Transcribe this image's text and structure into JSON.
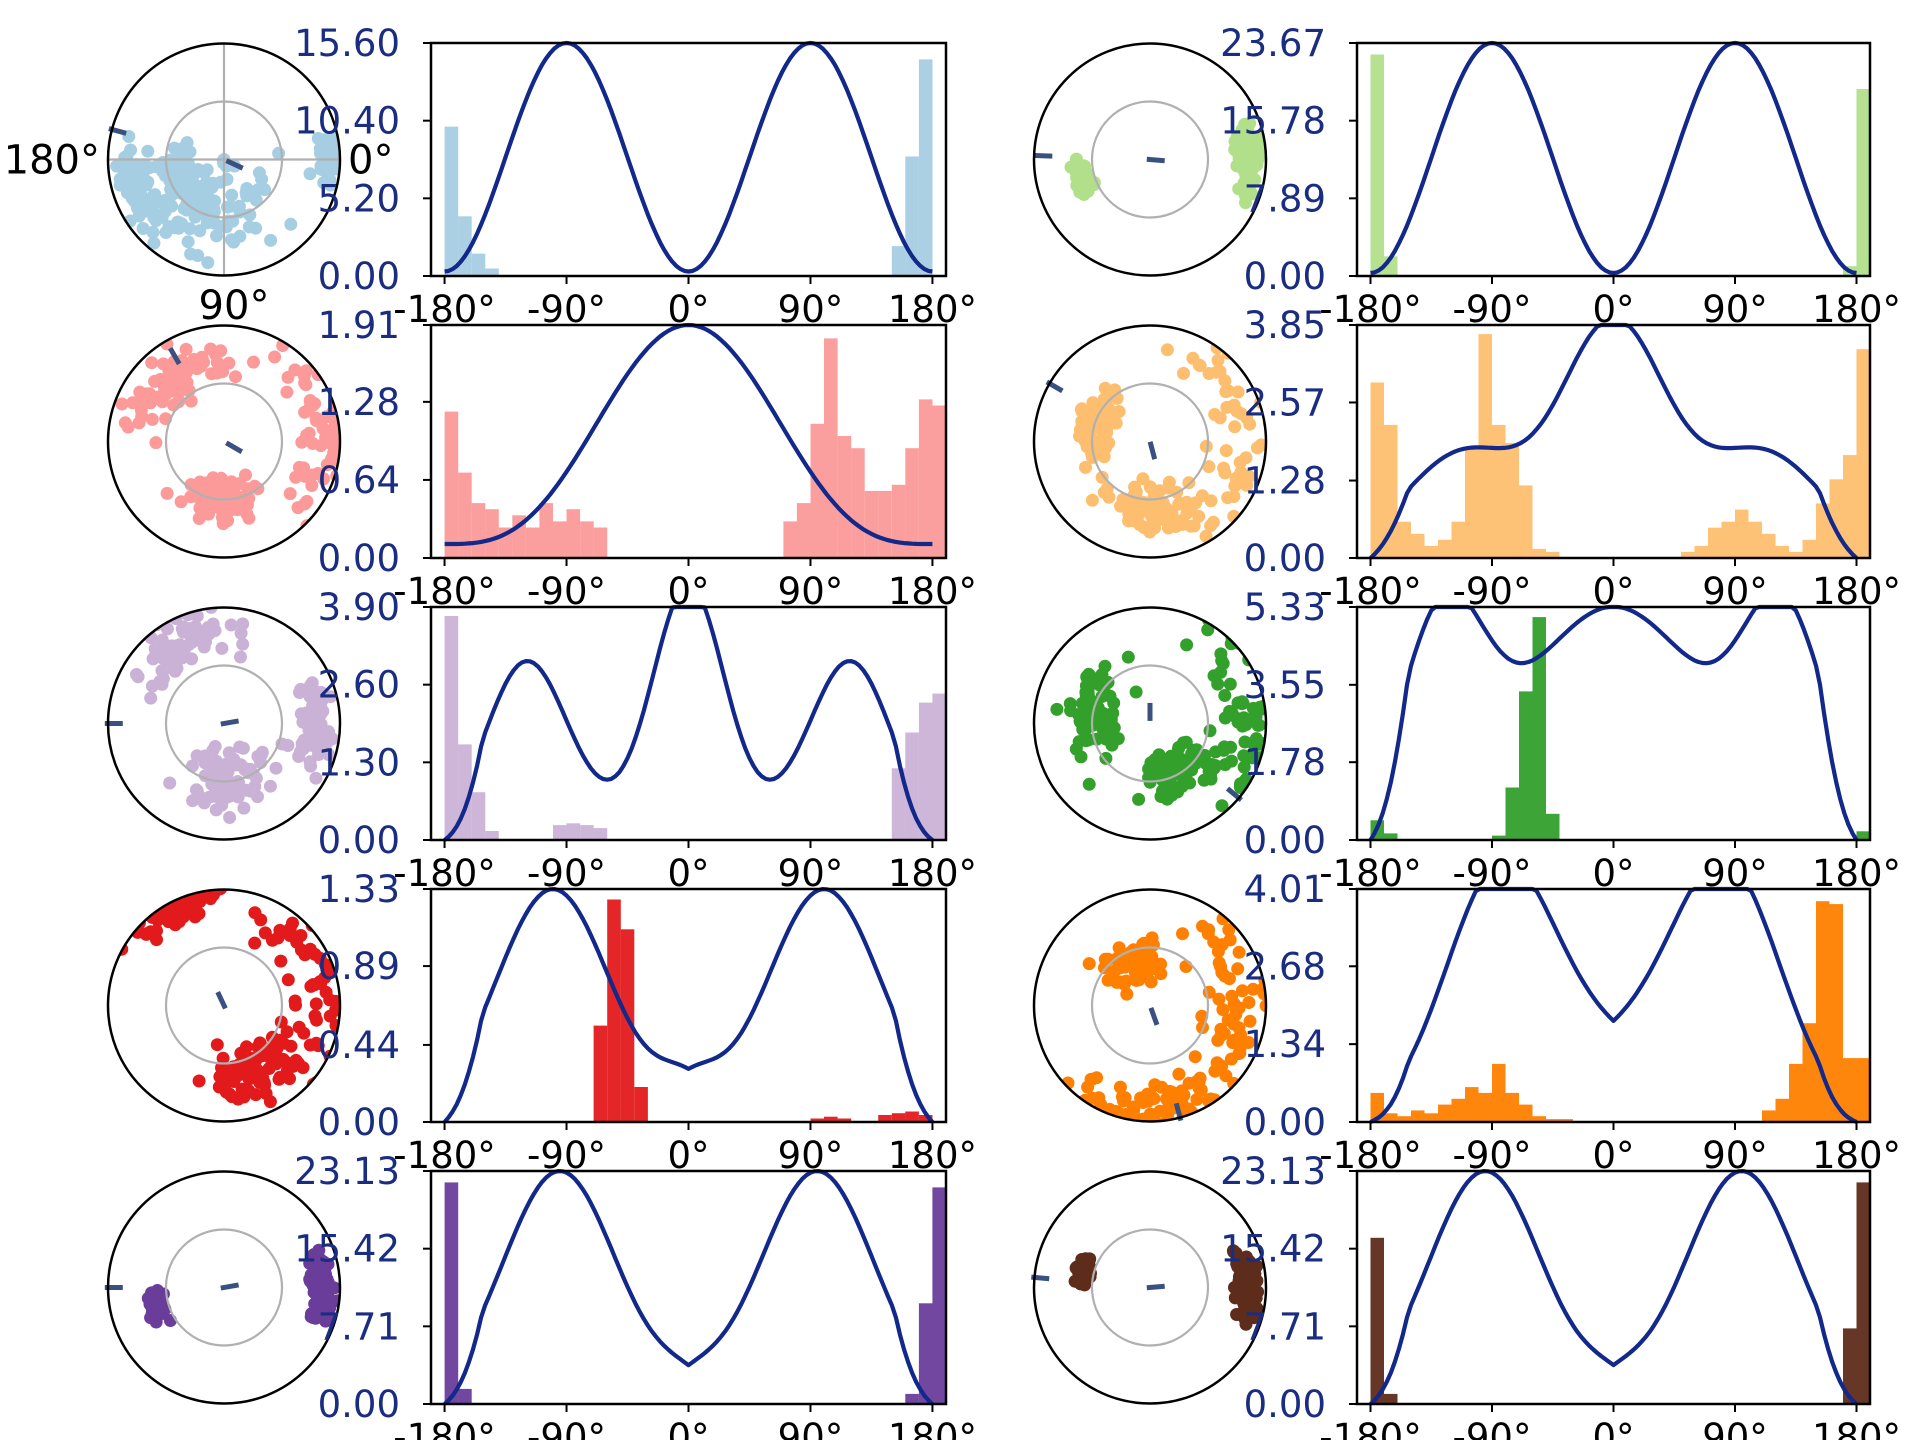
{
  "style": {
    "curve_color": "#12288a",
    "marker_color": "#3a5080",
    "frame_color": "#000000",
    "ring_color": "#b0b0b0",
    "tick_label_color": "#1a2d80"
  },
  "chart_data": [
    {
      "type": "bar",
      "name": "panel-r1-left",
      "color": "#a6cee3",
      "x_ticks": [
        "-180°",
        "-90°",
        "0°",
        "90°",
        "180°"
      ],
      "xlim": [
        -190,
        190
      ],
      "y_ticks": [
        "0.00",
        "5.20",
        "10.40",
        "15.60"
      ],
      "ylim": [
        0,
        15.6
      ],
      "hist_bins": [
        -180,
        -170,
        -160,
        -150,
        150,
        160,
        170
      ],
      "hist_values": [
        10.0,
        4.0,
        1.5,
        0.5,
        2.0,
        8.0,
        14.5
      ],
      "hist_width": 10,
      "curve_shape": "two-peak",
      "curve_params": {
        "peaks": [
          -90,
          90
        ],
        "max": 15.6,
        "min": 0.3
      },
      "polar": {
        "direction_labels": {
          "left": "180°",
          "right": "0°",
          "top": "",
          "bottom": ""
        },
        "show_crosshair": true,
        "markers": [
          [
            165,
            0.95
          ],
          [
            -25,
            0.1
          ]
        ],
        "points": [
          [
            1,
            0.9,
            0.3
          ],
          [
            -95,
            0.5,
            1.8
          ],
          [
            -160,
            0.8,
            0.7
          ],
          [
            -150,
            0.4,
            1.0
          ]
        ]
      }
    },
    {
      "type": "bar",
      "name": "panel-r1-right",
      "color": "#b2df8a",
      "x_ticks": [
        "-180°",
        "-90°",
        "0°",
        "90°",
        "180°"
      ],
      "xlim": [
        -190,
        190
      ],
      "y_ticks": [
        "0.00",
        "7.89",
        "15.78",
        "23.67"
      ],
      "ylim": [
        0,
        23.67
      ],
      "hist_bins": [
        -180,
        -170,
        170,
        180
      ],
      "hist_values": [
        22.5,
        2.0,
        1.0,
        19.0
      ],
      "hist_width": 10,
      "curve_shape": "two-peak",
      "curve_params": {
        "peaks": [
          -90,
          90
        ],
        "max": 23.67,
        "min": 0.3
      },
      "polar": {
        "direction_labels": {
          "left": "",
          "right": "",
          "top": "",
          "bottom": ""
        },
        "show_crosshair": false,
        "markers": [
          [
            178,
            0.92
          ],
          [
            -5,
            0.05
          ]
        ],
        "points": [
          [
            1,
            0.85,
            0.5
          ],
          [
            -165,
            0.6,
            0.3
          ]
        ]
      }
    },
    {
      "type": "bar",
      "name": "panel-r2-left",
      "color": "#fb9a99",
      "x_ticks": [
        "-180°",
        "-90°",
        "0°",
        "90°",
        "180°"
      ],
      "xlim": [
        -190,
        190
      ],
      "y_ticks": [
        "0.00",
        "0.64",
        "1.28",
        "1.91"
      ],
      "ylim": [
        0,
        1.91
      ],
      "hist_bins": [
        -180,
        -170,
        -160,
        -150,
        -140,
        -130,
        -120,
        -110,
        -100,
        -90,
        -80,
        -70,
        -60,
        70,
        80,
        90,
        100,
        110,
        120,
        130,
        140,
        150,
        160,
        170,
        180
      ],
      "hist_values": [
        1.2,
        0.7,
        0.45,
        0.4,
        0.25,
        0.35,
        0.25,
        0.45,
        0.3,
        0.4,
        0.3,
        0.25,
        0.0,
        0.3,
        0.45,
        1.1,
        1.8,
        1.0,
        0.9,
        0.55,
        0.55,
        0.6,
        0.9,
        1.3,
        1.25
      ],
      "hist_width": 10,
      "curve_shape": "bell",
      "curve_params": {
        "center": 0,
        "max": 1.91
      },
      "polar": {
        "direction_labels": {
          "left": "",
          "right": "",
          "top": "90°",
          "bottom": ""
        },
        "show_crosshair": false,
        "markers": [
          [
            120,
            0.85
          ],
          [
            -30,
            0.1
          ]
        ],
        "points": [
          [
            1,
            0.9,
            1.3
          ],
          [
            -90,
            0.5,
            0.9
          ],
          [
            130,
            0.7,
            1.0
          ]
        ]
      }
    },
    {
      "type": "bar",
      "name": "panel-r2-right",
      "color": "#fdbf6f",
      "x_ticks": [
        "-180°",
        "-90°",
        "0°",
        "90°",
        "180°"
      ],
      "xlim": [
        -190,
        190
      ],
      "y_ticks": [
        "0.00",
        "1.28",
        "2.57",
        "3.85"
      ],
      "ylim": [
        0,
        3.85
      ],
      "hist_bins": [
        -180,
        -170,
        -160,
        -150,
        -140,
        -130,
        -120,
        -110,
        -100,
        -90,
        -80,
        -70,
        -60,
        -50,
        50,
        60,
        70,
        80,
        90,
        100,
        110,
        120,
        130,
        140,
        150,
        160,
        170,
        180
      ],
      "hist_values": [
        2.9,
        2.2,
        0.6,
        0.4,
        0.2,
        0.3,
        0.6,
        1.8,
        3.7,
        2.2,
        1.9,
        1.2,
        0.15,
        0.1,
        0.1,
        0.2,
        0.5,
        0.6,
        0.8,
        0.6,
        0.4,
        0.2,
        0.1,
        0.3,
        0.9,
        1.3,
        1.7,
        3.45
      ],
      "hist_width": 10,
      "curve_shape": "three-peak",
      "curve_params": {
        "max": 3.85,
        "shoulder": 1.75
      },
      "polar": {
        "direction_labels": {
          "left": "",
          "right": "",
          "top": "",
          "bottom": ""
        },
        "show_crosshair": false,
        "markers": [
          [
            150,
            0.95
          ],
          [
            -75,
            0.08
          ]
        ],
        "points": [
          [
            1,
            0.9,
            1.5
          ],
          [
            -90,
            0.6,
            1.0
          ],
          [
            160,
            0.5,
            0.8
          ]
        ]
      }
    },
    {
      "type": "bar",
      "name": "panel-r3-left",
      "color": "#cab2d6",
      "x_ticks": [
        "-180°",
        "-90°",
        "0°",
        "90°",
        "180°"
      ],
      "xlim": [
        -190,
        190
      ],
      "y_ticks": [
        "0.00",
        "1.30",
        "2.60",
        "3.90"
      ],
      "ylim": [
        0,
        3.9
      ],
      "hist_bins": [
        -180,
        -170,
        -160,
        -150,
        -100,
        -90,
        -80,
        -70,
        150,
        160,
        170,
        180
      ],
      "hist_values": [
        3.75,
        1.6,
        0.8,
        0.15,
        0.25,
        0.28,
        0.25,
        0.2,
        1.2,
        1.8,
        2.3,
        2.45
      ],
      "hist_width": 10,
      "curve_shape": "three-peak-sharp",
      "curve_params": {
        "max": 3.9,
        "side": 2.8,
        "trough": 1.0
      },
      "polar": {
        "direction_labels": {
          "left": "",
          "right": "",
          "top": "",
          "bottom": ""
        },
        "show_crosshair": false,
        "markers": [
          [
            180,
            0.95
          ],
          [
            10,
            0.05
          ]
        ],
        "points": [
          [
            1,
            0.8,
            0.6
          ],
          [
            -80,
            0.5,
            1.2
          ],
          [
            120,
            0.8,
            0.9
          ]
        ]
      }
    },
    {
      "type": "bar",
      "name": "panel-r3-right",
      "color": "#33a02c",
      "x_ticks": [
        "-180°",
        "-90°",
        "0°",
        "90°",
        "180°"
      ],
      "xlim": [
        -190,
        190
      ],
      "y_ticks": [
        "0.00",
        "1.78",
        "3.55",
        "5.33"
      ],
      "ylim": [
        0,
        5.33
      ],
      "hist_bins": [
        -180,
        -170,
        -90,
        -80,
        -70,
        -60,
        -50,
        180
      ],
      "hist_values": [
        0.45,
        0.15,
        0.1,
        1.2,
        3.4,
        5.1,
        0.6,
        0.2
      ],
      "hist_width": 10,
      "curve_shape": "three-peak-low-center",
      "curve_params": {
        "max": 5.33,
        "center": 4.0,
        "trough": 2.7
      },
      "polar": {
        "direction_labels": {
          "left": "",
          "right": "",
          "top": "",
          "bottom": ""
        },
        "show_crosshair": false,
        "markers": [
          [
            -40,
            0.95
          ],
          [
            90,
            0.1
          ]
        ],
        "points": [
          [
            1,
            0.9,
            1.2
          ],
          [
            -60,
            0.5,
            1.0
          ],
          [
            170,
            0.5,
            1.2
          ]
        ]
      }
    },
    {
      "type": "bar",
      "name": "panel-r4-left",
      "color": "#e31a1c",
      "x_ticks": [
        "-180°",
        "-90°",
        "0°",
        "90°",
        "180°"
      ],
      "xlim": [
        -190,
        190
      ],
      "y_ticks": [
        "0.00",
        "0.44",
        "0.89",
        "1.33"
      ],
      "ylim": [
        0,
        1.33
      ],
      "hist_bins": [
        -70,
        -60,
        -50,
        -40,
        90,
        100,
        110,
        140,
        150,
        160,
        170
      ],
      "hist_values": [
        0.55,
        1.27,
        1.1,
        0.2,
        0.02,
        0.03,
        0.02,
        0.04,
        0.05,
        0.06,
        0.04
      ],
      "hist_width": 10,
      "curve_shape": "two-peak-valley",
      "curve_params": {
        "peaks": [
          -100,
          100
        ],
        "max": 1.33,
        "valley": 0.25
      },
      "polar": {
        "direction_labels": {
          "left": "",
          "right": "",
          "top": "",
          "bottom": ""
        },
        "show_crosshair": false,
        "markers": [
          [
            115,
            0.05
          ]
        ],
        "points": [
          [
            1,
            0.9,
            1.5
          ],
          [
            -60,
            0.6,
            1.0
          ],
          [
            120,
            0.95,
            0.6
          ]
        ]
      }
    },
    {
      "type": "bar",
      "name": "panel-r4-right",
      "color": "#ff7f00",
      "x_ticks": [
        "-180°",
        "-90°",
        "0°",
        "90°",
        "180°"
      ],
      "xlim": [
        -190,
        190
      ],
      "y_ticks": [
        "0.00",
        "1.34",
        "2.68",
        "4.01"
      ],
      "ylim": [
        0,
        4.01
      ],
      "hist_bins": [
        -180,
        -170,
        -160,
        -150,
        -140,
        -130,
        -120,
        -110,
        -100,
        -90,
        -80,
        -70,
        -60,
        -50,
        -40,
        110,
        120,
        130,
        140,
        150,
        160,
        170,
        180
      ],
      "hist_values": [
        0.5,
        0.15,
        0.1,
        0.2,
        0.15,
        0.3,
        0.4,
        0.6,
        0.5,
        1.0,
        0.5,
        0.3,
        0.1,
        0.05,
        0.05,
        0.2,
        0.4,
        1.0,
        1.7,
        3.8,
        3.75,
        1.1,
        1.1
      ],
      "hist_width": 10,
      "curve_shape": "two-peak-mid",
      "curve_params": {
        "peaks": [
          -85,
          85
        ],
        "max": 4.01,
        "valley": 2.2
      },
      "polar": {
        "direction_labels": {
          "left": "",
          "right": "",
          "top": "",
          "bottom": ""
        },
        "show_crosshair": false,
        "markers": [
          [
            -75,
            0.95
          ],
          [
            -70,
            0.1
          ]
        ],
        "points": [
          [
            1,
            0.8,
            1.5
          ],
          [
            110,
            0.4,
            0.9
          ],
          [
            -90,
            0.9,
            1.0
          ]
        ]
      }
    },
    {
      "type": "bar",
      "name": "panel-r5-left",
      "color": "#6a3d9a",
      "x_ticks": [
        "-180°",
        "-90°",
        "0°",
        "90°",
        "180°"
      ],
      "xlim": [
        -190,
        190
      ],
      "y_ticks": [
        "0.00",
        "7.71",
        "15.42",
        "23.13"
      ],
      "ylim": [
        0,
        23.13
      ],
      "hist_bins": [
        -180,
        -170,
        160,
        170,
        180
      ],
      "hist_values": [
        22.0,
        1.5,
        1.0,
        10.0,
        21.5
      ],
      "hist_width": 10,
      "curve_shape": "two-peak-valley",
      "curve_params": {
        "peaks": [
          -95,
          95
        ],
        "max": 23.13,
        "valley": 2.3
      },
      "polar": {
        "direction_labels": {
          "left": "",
          "right": "",
          "top": "",
          "bottom": ""
        },
        "show_crosshair": false,
        "markers": [
          [
            180,
            0.95
          ],
          [
            10,
            0.05
          ]
        ],
        "points": [
          [
            1,
            0.85,
            0.5
          ],
          [
            -165,
            0.6,
            0.3
          ]
        ]
      }
    },
    {
      "type": "bar",
      "name": "panel-r5-right",
      "color": "#5e2c1a",
      "x_ticks": [
        "-180°",
        "-90°",
        "0°",
        "90°",
        "180°"
      ],
      "xlim": [
        -190,
        190
      ],
      "y_ticks": [
        "0.00",
        "7.71",
        "15.42",
        "23.13"
      ],
      "ylim": [
        0,
        23.13
      ],
      "hist_bins": [
        -180,
        -170,
        170,
        180
      ],
      "hist_values": [
        16.5,
        1.0,
        7.5,
        22.0
      ],
      "hist_width": 10,
      "curve_shape": "two-peak-valley",
      "curve_params": {
        "peaks": [
          -95,
          95
        ],
        "max": 23.13,
        "valley": 2.3
      },
      "polar": {
        "direction_labels": {
          "left": "",
          "right": "",
          "top": "",
          "bottom": ""
        },
        "show_crosshair": false,
        "markers": [
          [
            175,
            0.95
          ],
          [
            5,
            0.05
          ]
        ],
        "points": [
          [
            1,
            0.85,
            0.5
          ],
          [
            165,
            0.6,
            0.3
          ]
        ]
      }
    }
  ]
}
